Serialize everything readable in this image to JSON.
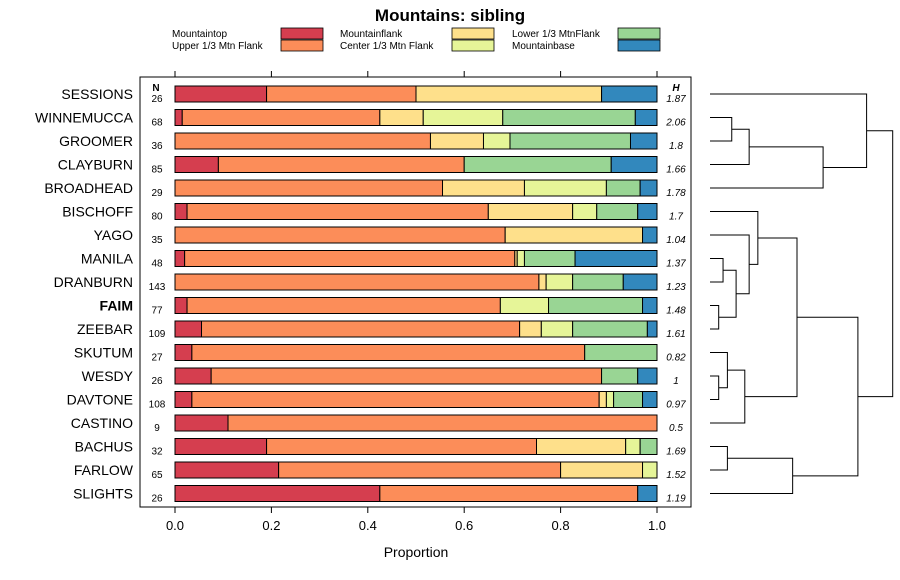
{
  "chart_data": {
    "type": "bar",
    "orientation": "horizontal",
    "stacked": true,
    "title": "Mountains: sibling",
    "xlabel": "Proportion",
    "ylabel": "",
    "xlim": [
      0,
      1
    ],
    "xticks": [
      "0.0",
      "0.2",
      "0.4",
      "0.6",
      "0.8",
      "1.0"
    ],
    "n_header": "N",
    "h_header": "H",
    "highlight_category": "FAIM",
    "categories": [
      "SESSIONS",
      "WINNEMUCCA",
      "GROOMER",
      "CLAYBURN",
      "BROADHEAD",
      "BISCHOFF",
      "YAGO",
      "MANILA",
      "DRANBURN",
      "FAIM",
      "ZEEBAR",
      "SKUTUM",
      "WESDY",
      "DAVTONE",
      "CASTINO",
      "BACHUS",
      "FARLOW",
      "SLIGHTS"
    ],
    "n": [
      "26",
      "68",
      "36",
      "85",
      "29",
      "80",
      "35",
      "48",
      "143",
      "77",
      "109",
      "27",
      "26",
      "108",
      "9",
      "32",
      "65",
      "26"
    ],
    "h": [
      "1.87",
      "2.06",
      "1.8",
      "1.66",
      "1.78",
      "1.7",
      "1.04",
      "1.37",
      "1.23",
      "1.48",
      "1.61",
      "0.82",
      "1",
      "0.97",
      "0.5",
      "1.69",
      "1.52",
      "1.19"
    ],
    "series": [
      {
        "name": "Mountaintop",
        "color": "#d53e4f",
        "values": [
          0.19,
          0.015,
          0,
          0.09,
          0,
          0.025,
          0,
          0.02,
          0,
          0.025,
          0.055,
          0.035,
          0.075,
          0.035,
          0.11,
          0.19,
          0.215,
          0.425
        ]
      },
      {
        "name": "Upper 1/3 Mtn Flank",
        "color": "#fc8d59",
        "values": [
          0.31,
          0.41,
          0.53,
          0.51,
          0.555,
          0.625,
          0.685,
          0.685,
          0.755,
          0.65,
          0.66,
          0.815,
          0.81,
          0.845,
          0.89,
          0.56,
          0.585,
          0.535
        ]
      },
      {
        "name": "Mountainflank",
        "color": "#fee08b",
        "values": [
          0.385,
          0.09,
          0.11,
          0,
          0.17,
          0.175,
          0.285,
          0.005,
          0.015,
          0,
          0.045,
          0,
          0,
          0.015,
          0,
          0.185,
          0.17,
          0
        ]
      },
      {
        "name": "Center 1/3 Mtn Flank",
        "color": "#e6f598",
        "values": [
          0,
          0.165,
          0.055,
          0,
          0.17,
          0.05,
          0,
          0.015,
          0.055,
          0.1,
          0.065,
          0,
          0,
          0.015,
          0,
          0.03,
          0.03,
          0
        ]
      },
      {
        "name": "Lower 1/3 MtnFlank",
        "color": "#99d594",
        "values": [
          0,
          0.275,
          0.25,
          0.305,
          0.07,
          0.085,
          0,
          0.105,
          0.105,
          0.195,
          0.155,
          0.15,
          0.075,
          0.06,
          0,
          0.035,
          0,
          0
        ]
      },
      {
        "name": "Mountainbase",
        "color": "#3288bd",
        "values": [
          0.115,
          0.045,
          0.055,
          0.095,
          0.035,
          0.04,
          0.03,
          0.17,
          0.07,
          0.03,
          0.02,
          0,
          0.04,
          0.03,
          0,
          0,
          0,
          0.04
        ]
      }
    ],
    "legend_layout": [
      {
        "series": 0,
        "col": 0,
        "row": 0
      },
      {
        "series": 1,
        "col": 0,
        "row": 1
      },
      {
        "series": 2,
        "col": 1,
        "row": 0
      },
      {
        "series": 3,
        "col": 1,
        "row": 1
      },
      {
        "series": 4,
        "col": 2,
        "row": 0
      },
      {
        "series": 5,
        "col": 2,
        "row": 1
      }
    ],
    "dendrogram": {
      "type": "hierarchical clustering of rows",
      "merges": [
        {
          "a": 1,
          "b": 2,
          "height": 0.25
        },
        {
          "a": "m0",
          "b": 3,
          "height": 0.45
        },
        {
          "a": "m1",
          "b": 4,
          "height": 1.3
        },
        {
          "a": 0,
          "b": "m2",
          "height": 1.8
        },
        {
          "a": 9,
          "b": 10,
          "height": 0.1
        },
        {
          "a": 7,
          "b": 8,
          "height": 0.15
        },
        {
          "a": "m5",
          "b": "m4",
          "height": 0.3
        },
        {
          "a": 6,
          "b": "m6",
          "height": 0.45
        },
        {
          "a": 5,
          "b": "m7",
          "height": 0.55
        },
        {
          "a": 12,
          "b": 13,
          "height": 0.1
        },
        {
          "a": 11,
          "b": "m9",
          "height": 0.2
        },
        {
          "a": "m10",
          "b": 14,
          "height": 0.4
        },
        {
          "a": "m8",
          "b": "m11",
          "height": 1.0
        },
        {
          "a": 15,
          "b": 16,
          "height": 0.2
        },
        {
          "a": "m13",
          "b": 17,
          "height": 0.95
        },
        {
          "a": "m12",
          "b": "m14",
          "height": 1.7
        },
        {
          "a": "m3",
          "b": "m15",
          "height": 2.1
        }
      ]
    }
  }
}
